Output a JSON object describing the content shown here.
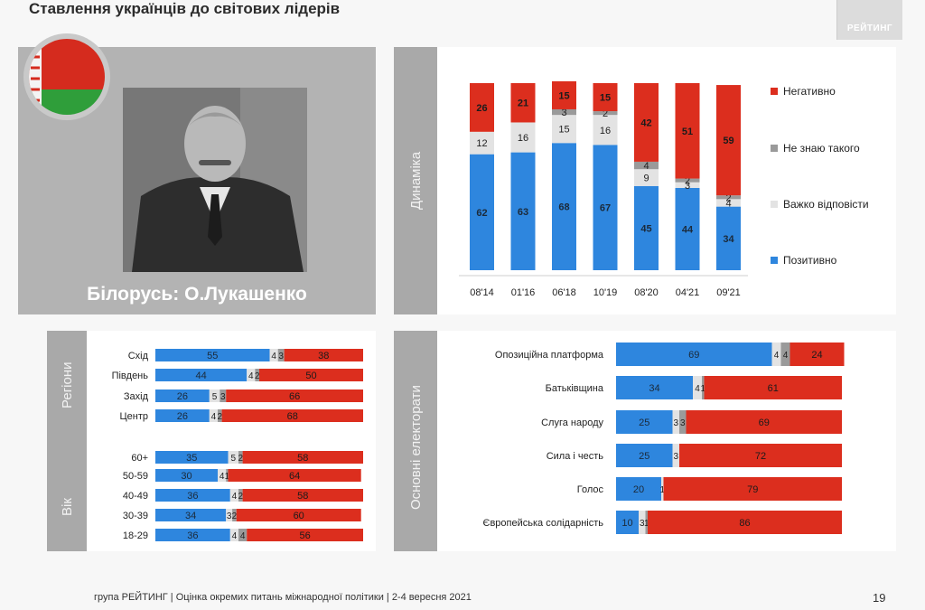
{
  "header": {
    "title": "Ставлення українців до світових лідерів",
    "logo_text": "РЕЙТИНГ"
  },
  "photo_panel": {
    "caption": "Білорусь: О.Лукашенко"
  },
  "footer": {
    "text": "група РЕЙТИНГ | Оцінка окремих питань міжнародної політики | 2-4 вересня 2021",
    "page_number": "19"
  },
  "colors": {
    "positive": "#2e86de",
    "dontknow": "#9a9a9a",
    "hard": "#e3e3e3",
    "negative": "#dc2e1e"
  },
  "chart_data": [
    {
      "type": "bar",
      "stacked": true,
      "orientation": "vertical",
      "section_label": "Динаміка",
      "categories": [
        "08'14",
        "01'16",
        "06'18",
        "10'19",
        "08'20",
        "04'21",
        "09'21"
      ],
      "series": [
        {
          "name": "Позитивно",
          "values": [
            62,
            63,
            68,
            67,
            45,
            44,
            34
          ]
        },
        {
          "name": "Важко відповісти",
          "values": [
            12,
            16,
            15,
            16,
            9,
            3,
            4
          ]
        },
        {
          "name": "Не знаю такого",
          "values": [
            0,
            0,
            3,
            2,
            4,
            2,
            2
          ]
        },
        {
          "name": "Негативно",
          "values": [
            26,
            21,
            15,
            15,
            42,
            51,
            59
          ]
        }
      ],
      "legend": [
        "Негативно",
        "Не знаю такого",
        "Важко відповісти",
        "Позитивно"
      ],
      "legend_position": "right",
      "ylim": [
        0,
        100
      ]
    },
    {
      "type": "bar",
      "stacked": true,
      "orientation": "horizontal",
      "groups": [
        {
          "label": "Регіони",
          "categories": [
            "Схід",
            "Південь",
            "Захід",
            "Центр"
          ]
        },
        {
          "label": "Вік",
          "categories": [
            "60+",
            "50-59",
            "40-49",
            "30-39",
            "18-29"
          ]
        }
      ],
      "categories": [
        "Схід",
        "Південь",
        "Захід",
        "Центр",
        "60+",
        "50-59",
        "40-49",
        "30-39",
        "18-29"
      ],
      "series": [
        {
          "name": "Позитивно",
          "values": [
            55,
            44,
            26,
            26,
            35,
            30,
            36,
            34,
            36
          ]
        },
        {
          "name": "Важко відповісти",
          "values": [
            4,
            4,
            5,
            4,
            5,
            4,
            4,
            3,
            4
          ]
        },
        {
          "name": "Не знаю такого",
          "values": [
            3,
            2,
            3,
            2,
            2,
            1,
            2,
            2,
            4
          ]
        },
        {
          "name": "Негативно",
          "values": [
            38,
            50,
            66,
            68,
            58,
            64,
            58,
            60,
            56
          ]
        }
      ],
      "xlim": [
        0,
        100
      ]
    },
    {
      "type": "bar",
      "stacked": true,
      "orientation": "horizontal",
      "section_label": "Основні електорати",
      "categories": [
        "Опозиційна платформа",
        "Батьківщина",
        "Слуга народу",
        "Сила і честь",
        "Голос",
        "Європейська солідарність"
      ],
      "series": [
        {
          "name": "Позитивно",
          "values": [
            69,
            34,
            25,
            25,
            20,
            10
          ]
        },
        {
          "name": "Важко відповісти",
          "values": [
            4,
            4,
            3,
            3,
            1,
            3
          ]
        },
        {
          "name": "Не знаю такого",
          "values": [
            4,
            1,
            3,
            0,
            0,
            1
          ]
        },
        {
          "name": "Негативно",
          "values": [
            24,
            61,
            69,
            72,
            79,
            86
          ]
        }
      ],
      "xlim": [
        0,
        100
      ]
    }
  ]
}
